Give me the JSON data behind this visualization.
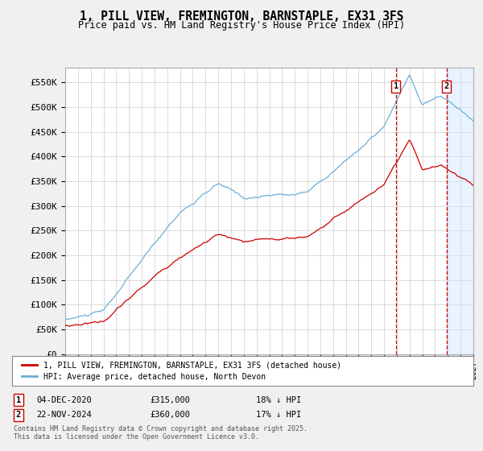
{
  "title_line1": "1, PILL VIEW, FREMINGTON, BARNSTAPLE, EX31 3FS",
  "title_line2": "Price paid vs. HM Land Registry's House Price Index (HPI)",
  "legend_entry1": "1, PILL VIEW, FREMINGTON, BARNSTAPLE, EX31 3FS (detached house)",
  "legend_entry2": "HPI: Average price, detached house, North Devon",
  "annotation1": {
    "label": "1",
    "date": "04-DEC-2020",
    "price": "£315,000",
    "hpi_diff": "18% ↓ HPI"
  },
  "annotation2": {
    "label": "2",
    "date": "22-NOV-2024",
    "price": "£360,000",
    "hpi_diff": "17% ↓ HPI"
  },
  "footnote": "Contains HM Land Registry data © Crown copyright and database right 2025.\nThis data is licensed under the Open Government Licence v3.0.",
  "bg_color": "#f0f0f0",
  "plot_bg_color": "#ffffff",
  "hpi_color": "#6baed6",
  "price_color": "#cc0000",
  "vline_color": "#cc0000",
  "grid_color": "#cccccc",
  "ylim": [
    0,
    580000
  ],
  "yticks": [
    0,
    50000,
    100000,
    150000,
    200000,
    250000,
    300000,
    350000,
    400000,
    450000,
    500000,
    550000
  ],
  "ytick_labels": [
    "£0",
    "£50K",
    "£100K",
    "£150K",
    "£200K",
    "£250K",
    "£300K",
    "£350K",
    "£400K",
    "£450K",
    "£500K",
    "£550K"
  ],
  "sale1_x": 2020.92,
  "sale2_x": 2024.9,
  "xlim_left": 1995,
  "xlim_right": 2027
}
